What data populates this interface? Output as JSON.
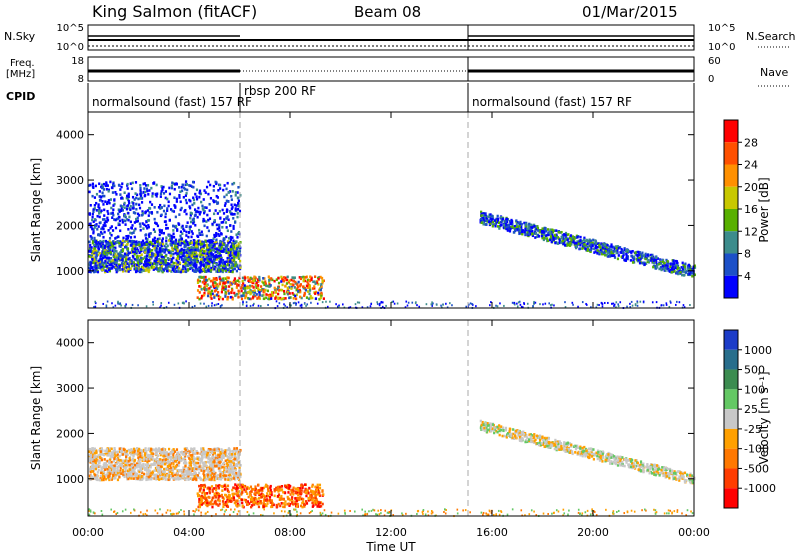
{
  "header": {
    "title": "King Salmon (fitACF)",
    "beam": "Beam 08",
    "date": "01/Mar/2015"
  },
  "strips": {
    "nsky_label": "N.Sky",
    "nsky_top": "10^5",
    "nsky_bottom": "10^0",
    "nsearch_label": "N.Search",
    "nsearch_top": "10^5",
    "nsearch_bottom": "10^0",
    "freq_label_1": "Freq.",
    "freq_label_2": "[MHz]",
    "freq_top": "18",
    "freq_bottom": "8",
    "nave_label": "Nave",
    "nave_top": "60",
    "nave_bottom": "0",
    "cpid_label": "CPID"
  },
  "cpid_segments": [
    {
      "label": "normalsound (fast) 157 RF",
      "start_hour": 0
    },
    {
      "label": "rbsp 200 RF",
      "start_hour": 6
    },
    {
      "label": "normalsound (fast) 157 RF",
      "start_hour": 15
    }
  ],
  "axes": {
    "x_ticks": [
      "00:00",
      "04:00",
      "08:00",
      "12:00",
      "16:00",
      "20:00",
      "00:00"
    ],
    "x_label": "Time UT",
    "y_label": "Slant Range [km]",
    "y_ticks": [
      "1000",
      "2000",
      "3000",
      "4000"
    ]
  },
  "colorbars": {
    "power": {
      "label": "Power [dB]",
      "ticks": [
        "4",
        "8",
        "12",
        "16",
        "20",
        "24",
        "28"
      ],
      "colors": [
        "#0000ff",
        "#1c50c8",
        "#3c8c8c",
        "#58b000",
        "#c8c800",
        "#ff9000",
        "#ff5000",
        "#ff0000"
      ]
    },
    "velocity": {
      "label": "Velocity [m s⁻¹]",
      "ticks": [
        "1000",
        "500",
        "100",
        "25",
        "-25",
        "-100",
        "-500",
        "-1000"
      ],
      "colors": [
        "#1c3cc8",
        "#286e8c",
        "#3c8c50",
        "#64c864",
        "#c8c8c8",
        "#ffa000",
        "#ff7800",
        "#ff3c00",
        "#ff0000"
      ]
    }
  },
  "chart_data": [
    {
      "type": "heatmap",
      "panel": "power",
      "x_range_hours": [
        0,
        24
      ],
      "y_range_km": [
        180,
        4500
      ],
      "features": [
        {
          "name": "",
          "t_start": 0.0,
          "t_end": 6.0,
          "r_low": 1000,
          "r_high": 1700
        },
        {
          "name": "",
          "t_start": 0.0,
          "t_end": 6.0,
          "r_low": 1700,
          "r_high": 3000
        },
        {
          "name": "",
          "t_start": 4.3,
          "t_end": 9.3,
          "r_low": 400,
          "r_high": 900
        },
        {
          "name": "",
          "t_start": 15.5,
          "t_end": 24.0,
          "r_low": 1000,
          "r_high": 2200
        }
      ]
    },
    {
      "type": "heatmap",
      "panel": "velocity",
      "x_range_hours": [
        0,
        24
      ],
      "y_range_km": [
        180,
        4500
      ],
      "features": [
        {
          "name": "",
          "t_start": 0.0,
          "t_end": 6.0,
          "r_low": 1000,
          "r_high": 1700
        },
        {
          "name": "",
          "t_start": 4.3,
          "t_end": 9.3,
          "r_low": 400,
          "r_high": 900
        },
        {
          "name": "",
          "t_start": 15.5,
          "t_end": 24.0,
          "r_low": 1000,
          "r_high": 2200
        }
      ]
    }
  ]
}
